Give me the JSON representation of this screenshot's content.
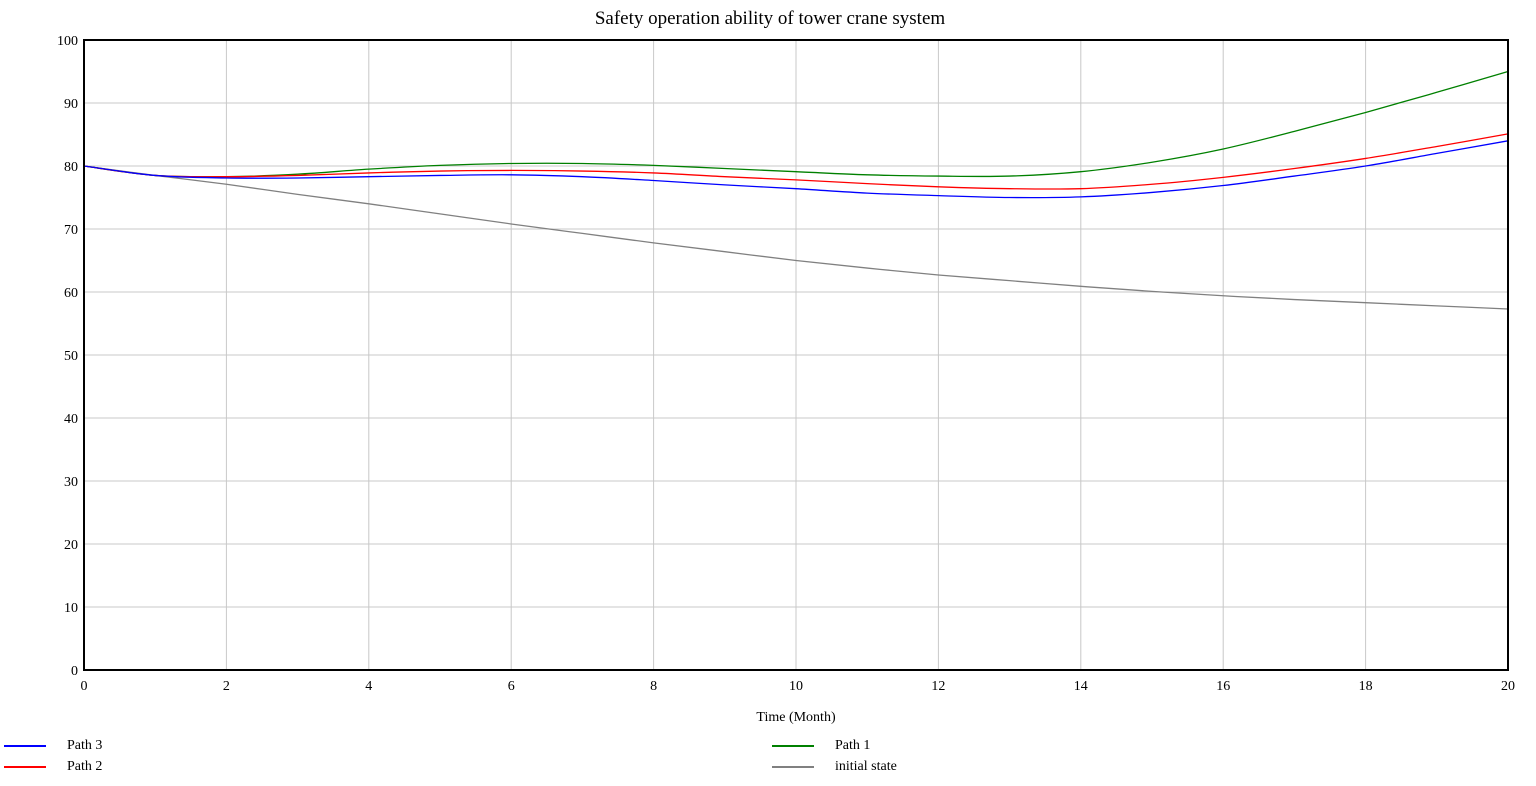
{
  "chart_data": {
    "type": "line",
    "title": "Safety operation ability of tower crane system",
    "xlabel": "Time (Month)",
    "ylabel": "",
    "xlim": [
      0,
      20
    ],
    "ylim": [
      0,
      100
    ],
    "xticks": [
      0,
      2,
      4,
      6,
      8,
      10,
      12,
      14,
      16,
      18,
      20
    ],
    "yticks": [
      0,
      10,
      20,
      30,
      40,
      50,
      60,
      70,
      80,
      90,
      100
    ],
    "grid": true,
    "legend_position": "bottom",
    "x": [
      0,
      1,
      2,
      3,
      4,
      5,
      6,
      7,
      8,
      9,
      10,
      11,
      12,
      13,
      14,
      15,
      16,
      17,
      18,
      19,
      20
    ],
    "series": [
      {
        "name": "Path 3",
        "color": "#0000ff",
        "values": [
          80,
          78.5,
          78.1,
          78.1,
          78.3,
          78.5,
          78.6,
          78.3,
          77.7,
          77.0,
          76.4,
          75.7,
          75.3,
          75.0,
          75.1,
          75.8,
          76.9,
          78.4,
          80.0,
          82.0,
          84.0
        ]
      },
      {
        "name": "Path 2",
        "color": "#ff0000",
        "values": [
          80,
          78.5,
          78.3,
          78.5,
          78.9,
          79.2,
          79.3,
          79.2,
          78.9,
          78.3,
          77.8,
          77.2,
          76.7,
          76.4,
          76.4,
          77.1,
          78.2,
          79.6,
          81.2,
          83.1,
          85.1
        ]
      },
      {
        "name": "Path 1",
        "color": "#008000",
        "values": [
          80,
          78.5,
          78.3,
          78.7,
          79.5,
          80.1,
          80.4,
          80.4,
          80.1,
          79.6,
          79.1,
          78.6,
          78.4,
          78.4,
          79.1,
          80.6,
          82.7,
          85.5,
          88.5,
          91.7,
          95.0
        ]
      },
      {
        "name": "initial state",
        "color": "#808080",
        "values": [
          80,
          78.5,
          77.1,
          75.5,
          74.0,
          72.4,
          70.8,
          69.3,
          67.8,
          66.4,
          65.0,
          63.8,
          62.7,
          61.8,
          60.9,
          60.1,
          59.4,
          58.8,
          58.3,
          57.8,
          57.3
        ]
      }
    ]
  },
  "legend": [
    {
      "label": "Path 3",
      "color": "#0000ff"
    },
    {
      "label": "Path 2",
      "color": "#ff0000"
    },
    {
      "label": "Path 1",
      "color": "#008000"
    },
    {
      "label": "initial state",
      "color": "#808080"
    }
  ]
}
